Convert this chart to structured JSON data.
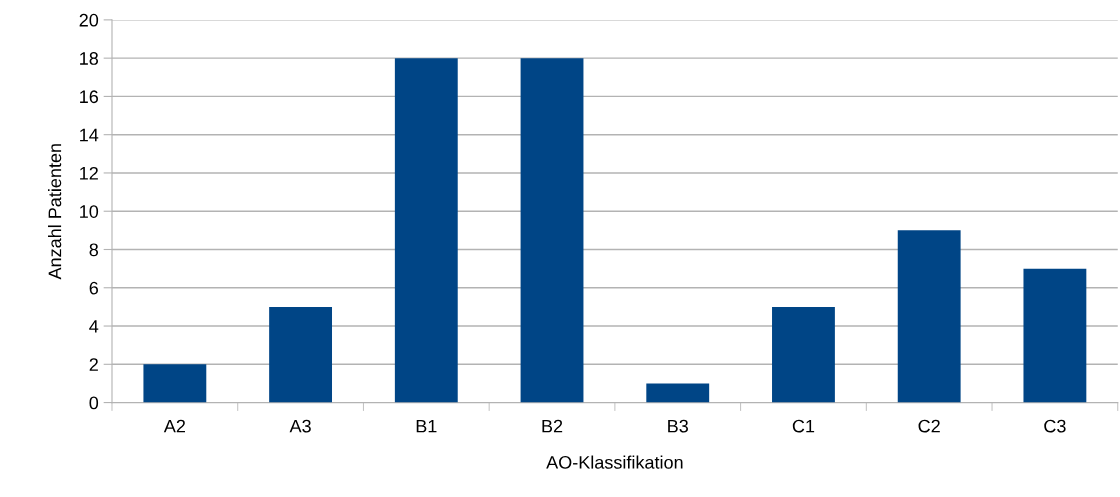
{
  "chart_data": {
    "type": "bar",
    "xlabel": "AO-Klassifikation",
    "ylabel": "Anzahl Patienten",
    "categories": [
      "A2",
      "A3",
      "B1",
      "B2",
      "B3",
      "C1",
      "C2",
      "C3"
    ],
    "values": [
      2,
      5,
      18,
      18,
      1,
      5,
      9,
      7
    ],
    "color": "#004586",
    "ylim": [
      0,
      20
    ],
    "yticks": [
      0,
      2,
      4,
      6,
      8,
      10,
      12,
      14,
      16,
      18,
      20
    ],
    "grid": "y",
    "legend": false
  }
}
